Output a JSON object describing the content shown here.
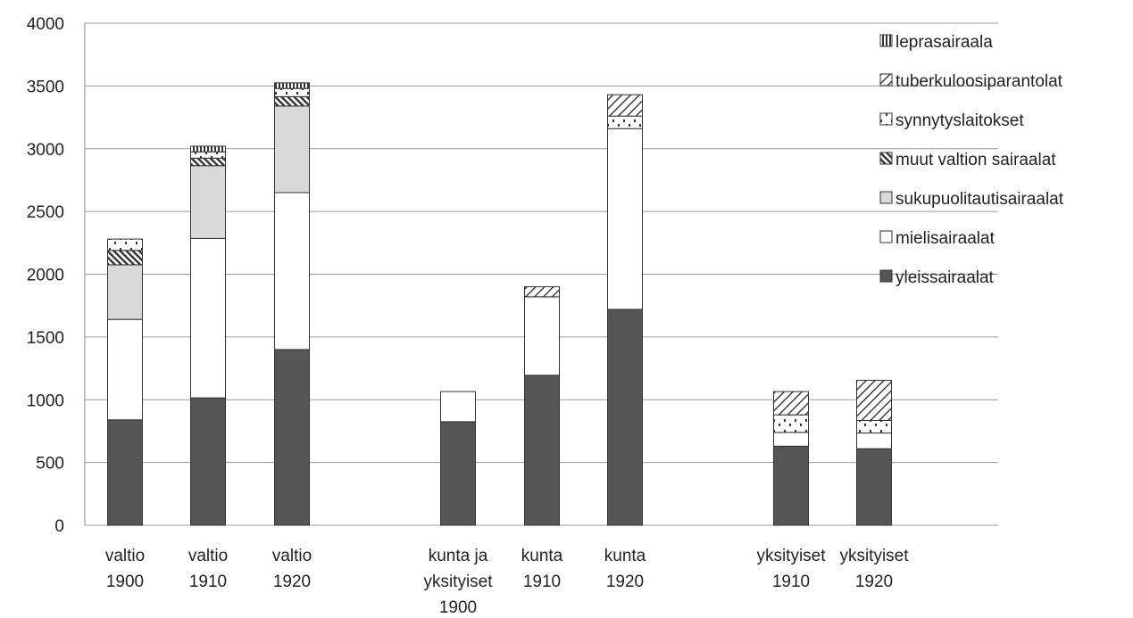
{
  "chart_data": {
    "type": "bar",
    "stacked": true,
    "categories": [
      [
        "valtio",
        "1900"
      ],
      [
        "valtio",
        "1910"
      ],
      [
        "valtio",
        "1920"
      ],
      [
        "kunta ja",
        "yksityiset",
        "1900"
      ],
      [
        "kunta",
        "1910"
      ],
      [
        "kunta",
        "1920"
      ],
      [
        "yksityiset",
        "1910"
      ],
      [
        "yksityiset",
        "1920"
      ]
    ],
    "series": [
      {
        "name": "yleissairaalat",
        "key": "yleis",
        "values": [
          840,
          1015,
          1400,
          825,
          1195,
          1720,
          630,
          610
        ]
      },
      {
        "name": "mielisairaalat",
        "key": "mieli",
        "values": [
          800,
          1270,
          1250,
          240,
          625,
          1440,
          110,
          125
        ]
      },
      {
        "name": "sukupuolitautisairaalat",
        "key": "sukupuoli",
        "values": [
          435,
          580,
          690,
          0,
          0,
          0,
          0,
          0
        ]
      },
      {
        "name": "muut valtion sairaalat",
        "key": "muut",
        "values": [
          115,
          60,
          75,
          0,
          0,
          0,
          0,
          0
        ]
      },
      {
        "name": "synnytyslaitokset",
        "key": "synnytys",
        "values": [
          90,
          50,
          65,
          0,
          0,
          100,
          140,
          100
        ]
      },
      {
        "name": "tuberkuloosiparantolat",
        "key": "tuberkuloosi",
        "values": [
          0,
          0,
          0,
          0,
          80,
          170,
          185,
          320
        ]
      },
      {
        "name": "leprasairaala",
        "key": "lepra",
        "values": [
          0,
          45,
          45,
          0,
          0,
          0,
          0,
          0
        ]
      }
    ],
    "title": "",
    "xlabel": "",
    "ylabel": "",
    "ylim": [
      0,
      4000
    ],
    "yticks": [
      "0",
      "500",
      "1000",
      "1500",
      "2000",
      "2500",
      "3000",
      "3500",
      "4000"
    ],
    "grid": "horizontal",
    "legend": "top-right, reversed series order",
    "colors": {
      "yleissairaalat": "#555555",
      "mielisairaalat": "#ffffff",
      "sukupuolitautisairaalat": "#d9d9d9",
      "outline": "#333333",
      "grid": "#9a9a9a"
    }
  }
}
